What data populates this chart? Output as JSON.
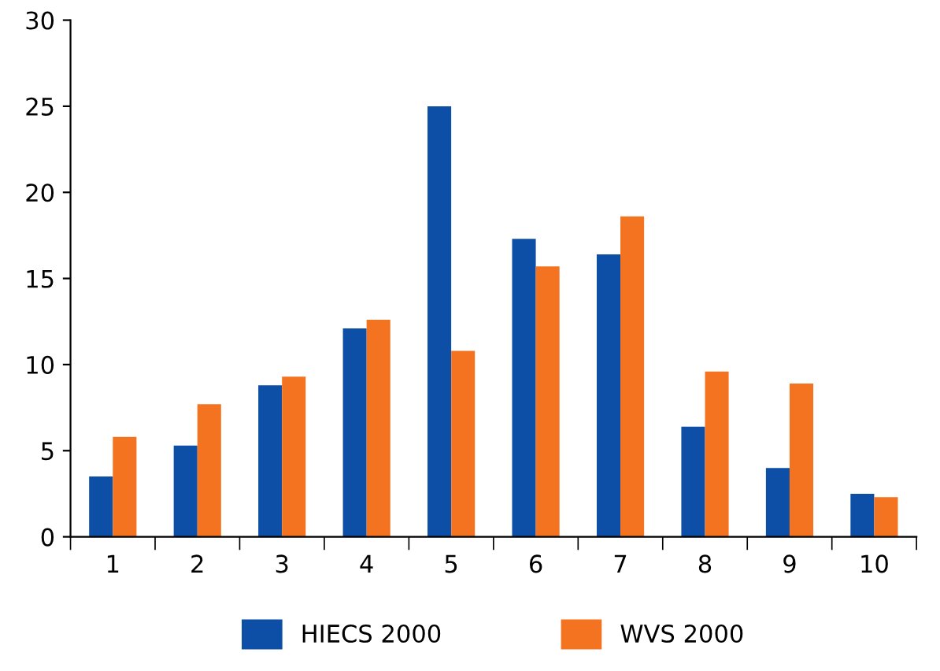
{
  "chart_data": {
    "type": "bar",
    "categories": [
      "1",
      "2",
      "3",
      "4",
      "5",
      "6",
      "7",
      "8",
      "9",
      "10"
    ],
    "series": [
      {
        "name": "HIECS 2000",
        "color": "#0d4ea6",
        "values": [
          3.5,
          5.3,
          8.8,
          12.1,
          25.0,
          17.3,
          16.4,
          6.4,
          4.0,
          2.5
        ]
      },
      {
        "name": "WVS 2000",
        "color": "#f47320",
        "values": [
          5.8,
          7.7,
          9.3,
          12.6,
          10.8,
          15.7,
          18.6,
          9.6,
          8.9,
          2.3
        ]
      }
    ],
    "ylim": [
      0,
      30
    ],
    "yticks": [
      0,
      5,
      10,
      15,
      20,
      25,
      30
    ],
    "grid": false,
    "legend": "bottom"
  }
}
